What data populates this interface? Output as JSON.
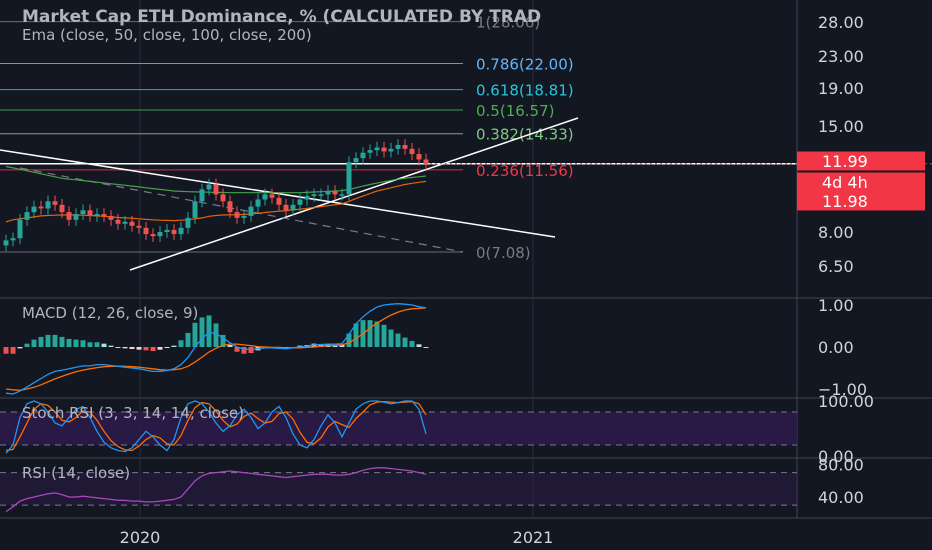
{
  "main_title": "Market Cap ETH Dominance, % (CALCULATED BY TRAD",
  "ema_label": "Ema (close, 50, close, 100, close, 200)",
  "macd_label": "MACD (12, 26, close, 9)",
  "stoch_label": "Stoch RSI (3, 3, 14, 14, close)",
  "rsi_label": "RSI (14, close)",
  "colors": {
    "background": "#131722",
    "up": "#26a69a",
    "down": "#ef5350",
    "macd_line": "#2196f3",
    "signal_line": "#ff6d00",
    "stoch_band": "#2d1b4a",
    "stoch_k": "#2196f3",
    "stoch_d": "#ff6d00",
    "rsi_line": "#ab47bc",
    "price_tag": "#f23645"
  },
  "chart_data": [
    {
      "type": "candlestick",
      "name": "price",
      "y_ticks": [
        {
          "label": "28.00",
          "value": 28.0
        },
        {
          "label": "23.00",
          "value": 23.0
        },
        {
          "label": "19.00",
          "value": 19.0
        },
        {
          "label": "15.00",
          "value": 15.0
        },
        {
          "label": "8.00",
          "value": 8.0
        },
        {
          "label": "6.50",
          "value": 6.5
        }
      ],
      "x_ticks": [
        {
          "label": "2020"
        },
        {
          "label": "2021"
        }
      ],
      "fib_levels": [
        {
          "label": "1(28.06)",
          "value": 28.06,
          "color": "#787b86"
        },
        {
          "label": "0.786(22.00)",
          "value": 22.0,
          "color": "#64b5f6"
        },
        {
          "label": "0.618(18.81)",
          "value": 18.81,
          "color": "#26c6da"
        },
        {
          "label": "0.5(16.57)",
          "value": 16.57,
          "color": "#4caf50"
        },
        {
          "label": "0.382(14.33)",
          "value": 14.33,
          "color": "#81c784"
        },
        {
          "label": "0.236(11.56)",
          "value": 11.56,
          "color": "#f23645"
        },
        {
          "label": "0(7.08)",
          "value": 7.08,
          "color": "#787b86"
        }
      ],
      "price_tags": [
        {
          "label": "11.99",
          "value": 11.99
        },
        {
          "label": "4d 4h"
        },
        {
          "label": "11.98",
          "value": 11.98
        }
      ],
      "closes": [
        7.6,
        7.7,
        8.6,
        9.0,
        9.3,
        9.2,
        9.6,
        9.4,
        9.0,
        8.6,
        8.9,
        9.1,
        8.8,
        8.9,
        8.8,
        8.6,
        8.4,
        8.5,
        8.3,
        8.2,
        7.9,
        7.8,
        8.0,
        8.1,
        7.9,
        8.2,
        8.7,
        9.6,
        10.3,
        10.6,
        10.0,
        9.6,
        9.0,
        8.7,
        8.8,
        9.3,
        9.7,
        10.0,
        9.8,
        9.4,
        9.1,
        9.4,
        9.7,
        9.9,
        10.0,
        10.0,
        10.2,
        10.0,
        10.0,
        12.1,
        12.4,
        12.8,
        13.0,
        13.2,
        12.9,
        13.1,
        13.4,
        13.1,
        12.7,
        12.3,
        11.98
      ],
      "series_lines": [
        {
          "name": "",
          "color": "#ff6d00",
          "values": [
            8.5,
            8.6,
            8.65,
            8.7,
            8.75,
            8.8,
            8.82,
            8.84,
            8.85,
            8.86,
            8.85,
            8.84,
            8.82,
            8.8,
            8.78,
            8.75,
            8.72,
            8.7,
            8.68,
            8.65,
            8.62,
            8.6,
            8.58,
            8.57,
            8.56,
            8.58,
            8.6,
            8.65,
            8.7,
            8.78,
            8.82,
            8.85,
            8.86,
            8.86,
            8.88,
            8.9,
            8.94,
            8.98,
            9.02,
            9.05,
            9.08,
            9.12,
            9.16,
            9.2,
            9.25,
            9.3,
            9.35,
            9.4,
            9.45,
            9.6,
            9.75,
            9.9,
            10.05,
            10.2,
            10.3,
            10.4,
            10.5,
            10.6,
            10.68,
            10.74,
            10.8
          ]
        },
        {
          "name": "",
          "color": "#4caf50",
          "values": [
            11.8,
            11.7,
            11.6,
            11.5,
            11.4,
            11.3,
            11.2,
            11.1,
            11.0,
            10.95,
            10.9,
            10.85,
            10.8,
            10.75,
            10.7,
            10.65,
            10.6,
            10.55,
            10.5,
            10.45,
            10.4,
            10.35,
            10.3,
            10.25,
            10.2,
            10.18,
            10.16,
            10.15,
            10.14,
            10.13,
            10.12,
            10.11,
            10.1,
            10.1,
            10.1,
            10.1,
            10.1,
            10.1,
            10.1,
            10.1,
            10.1,
            10.1,
            10.1,
            10.12,
            10.14,
            10.16,
            10.18,
            10.2,
            10.22,
            10.3,
            10.4,
            10.5,
            10.6,
            10.7,
            10.78,
            10.86,
            10.94,
            11.0,
            11.05,
            11.1,
            11.15
          ]
        }
      ]
    },
    {
      "type": "bar+line",
      "name": "macd",
      "y_ticks": [
        {
          "label": "1.00",
          "value": 1.0
        },
        {
          "label": "0.00",
          "value": 0.0
        },
        {
          "label": "−1.00",
          "value": -1.0
        }
      ],
      "macd": [
        -1.1,
        -1.12,
        -1.05,
        -0.95,
        -0.85,
        -0.75,
        -0.65,
        -0.58,
        -0.55,
        -0.52,
        -0.48,
        -0.45,
        -0.45,
        -0.42,
        -0.42,
        -0.44,
        -0.46,
        -0.48,
        -0.5,
        -0.52,
        -0.55,
        -0.58,
        -0.58,
        -0.56,
        -0.52,
        -0.42,
        -0.25,
        0.0,
        0.2,
        0.35,
        0.32,
        0.22,
        0.1,
        0.0,
        -0.05,
        -0.06,
        -0.04,
        -0.02,
        -0.02,
        -0.03,
        -0.04,
        -0.02,
        0.0,
        0.02,
        0.05,
        0.06,
        0.07,
        0.07,
        0.08,
        0.3,
        0.55,
        0.72,
        0.85,
        0.95,
        1.0,
        1.02,
        1.03,
        1.02,
        1.0,
        0.96,
        0.93
      ],
      "signal": [
        -1.0,
        -1.02,
        -1.03,
        -1.0,
        -0.96,
        -0.9,
        -0.83,
        -0.76,
        -0.7,
        -0.64,
        -0.59,
        -0.55,
        -0.52,
        -0.49,
        -0.47,
        -0.46,
        -0.46,
        -0.46,
        -0.47,
        -0.48,
        -0.5,
        -0.52,
        -0.54,
        -0.55,
        -0.54,
        -0.52,
        -0.46,
        -0.36,
        -0.24,
        -0.12,
        -0.03,
        0.04,
        0.07,
        0.07,
        0.05,
        0.03,
        0.01,
        0.0,
        -0.01,
        -0.01,
        -0.02,
        -0.02,
        -0.02,
        -0.01,
        0.0,
        0.02,
        0.03,
        0.04,
        0.05,
        0.1,
        0.2,
        0.32,
        0.45,
        0.57,
        0.67,
        0.76,
        0.83,
        0.88,
        0.91,
        0.92,
        0.93
      ]
    },
    {
      "type": "line",
      "name": "stoch_rsi",
      "y_ticks": [
        {
          "label": "100.00",
          "value": 100
        },
        {
          "label": "0.00",
          "value": 0
        }
      ],
      "bands": [
        80,
        20
      ],
      "k": [
        5,
        20,
        70,
        95,
        100,
        95,
        80,
        60,
        55,
        70,
        85,
        90,
        70,
        45,
        25,
        15,
        10,
        8,
        15,
        30,
        45,
        35,
        20,
        10,
        30,
        70,
        95,
        100,
        95,
        80,
        60,
        45,
        55,
        75,
        85,
        70,
        50,
        60,
        80,
        90,
        70,
        40,
        20,
        15,
        30,
        55,
        75,
        60,
        35,
        60,
        85,
        95,
        100,
        100,
        98,
        95,
        97,
        100,
        100,
        85,
        40
      ],
      "d": [
        10,
        12,
        35,
        60,
        85,
        95,
        92,
        80,
        65,
        62,
        70,
        82,
        80,
        65,
        45,
        28,
        17,
        11,
        10,
        18,
        30,
        37,
        33,
        22,
        20,
        37,
        65,
        88,
        97,
        95,
        82,
        65,
        53,
        58,
        72,
        78,
        68,
        60,
        63,
        77,
        80,
        67,
        43,
        25,
        22,
        33,
        53,
        63,
        57,
        52,
        68,
        80,
        93,
        98,
        99,
        98,
        97,
        98,
        99,
        95,
        75
      ]
    },
    {
      "type": "line",
      "name": "rsi",
      "y_ticks": [
        {
          "label": "80.00",
          "value": 80
        },
        {
          "label": "40.00",
          "value": 40
        }
      ],
      "bands": [
        70,
        30
      ],
      "values": [
        22,
        28,
        35,
        38,
        40,
        42,
        44,
        45,
        43,
        40,
        40,
        41,
        40,
        39,
        38,
        37,
        36,
        36,
        35,
        35,
        34,
        34,
        35,
        36,
        37,
        40,
        50,
        60,
        66,
        69,
        70,
        71,
        72,
        71,
        70,
        69,
        68,
        67,
        66,
        65,
        64,
        65,
        66,
        67,
        68,
        68,
        68,
        67,
        67,
        68,
        70,
        73,
        75,
        76,
        76,
        75,
        74,
        73,
        72,
        70,
        68
      ]
    }
  ]
}
